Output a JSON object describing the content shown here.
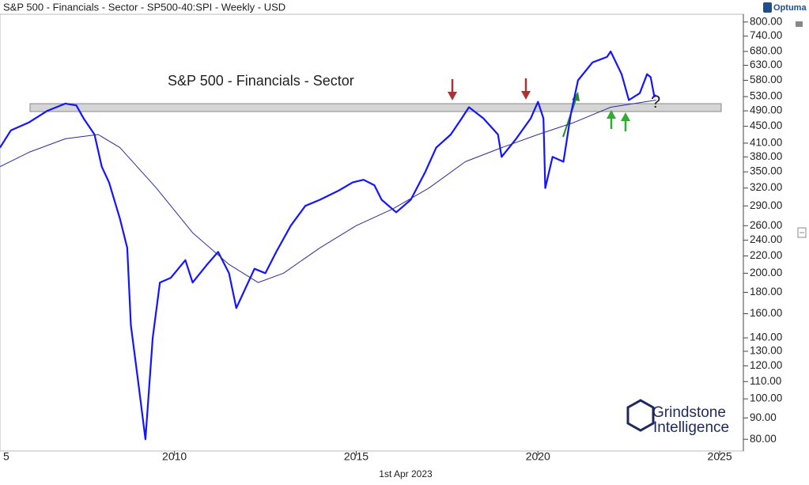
{
  "chart_data": {
    "type": "line",
    "title": "S&P 500 - Financials - Sector - SP500-40:SPI - Weekly - USD",
    "brand": "Optuma",
    "annotations": [
      "S&P 500 - Financials - Sector",
      "?"
    ],
    "date_label": "1st Apr 2023",
    "logo": [
      "Grindstone",
      "Intelligence"
    ],
    "log_scale": true,
    "xlim": [
      2005.2,
      2025.65
    ],
    "xticks": [
      {
        "value": 2005,
        "label": "5"
      },
      2010,
      2015,
      2020,
      2025
    ],
    "ylim": [
      75,
      835
    ],
    "yticks": [
      {
        "value": 800,
        "label": "800.00"
      },
      {
        "value": 740,
        "label": "740.00"
      },
      {
        "value": 680,
        "label": "680.00"
      },
      {
        "value": 630,
        "label": "630.00"
      },
      {
        "value": 580,
        "label": "580.00"
      },
      {
        "value": 530,
        "label": "530.00"
      },
      {
        "value": 490,
        "label": "490.00"
      },
      {
        "value": 450,
        "label": "450.00"
      },
      {
        "value": 410,
        "label": "410.00"
      },
      {
        "value": 380,
        "label": "380.00"
      },
      {
        "value": 350,
        "label": "350.00"
      },
      {
        "value": 320,
        "label": "320.00"
      },
      {
        "value": 290,
        "label": "290.00"
      },
      {
        "value": 260,
        "label": "260.00"
      },
      {
        "value": 240,
        "label": "240.00"
      },
      {
        "value": 220,
        "label": "220.00"
      },
      {
        "value": 200,
        "label": "200.00"
      },
      {
        "value": 180,
        "label": "180.00"
      },
      {
        "value": 160,
        "label": "160.00"
      },
      {
        "value": 140,
        "label": "140.00"
      },
      {
        "value": 130,
        "label": "130.00"
      },
      {
        "value": 120,
        "label": "120.00"
      },
      {
        "value": 110,
        "label": "110.00"
      },
      {
        "value": 100,
        "label": "100.00"
      },
      {
        "value": 90,
        "label": "90.00"
      },
      {
        "value": 80,
        "label": "80.00"
      }
    ],
    "series": [
      {
        "color": "#1414ff",
        "width": 2.2,
        "x": [
          2005.2,
          2005.5,
          2006,
          2006.5,
          2007,
          2007.3,
          2007.5,
          2007.8,
          2008,
          2008.2,
          2008.5,
          2008.7,
          2008.8,
          2009,
          2009.2,
          2009.4,
          2009.6,
          2009.9,
          2010.3,
          2010.5,
          2010.9,
          2011.2,
          2011.5,
          2011.7,
          2011.9,
          2012.2,
          2012.5,
          2012.8,
          2013.2,
          2013.6,
          2014,
          2014.5,
          2014.9,
          2015.2,
          2015.5,
          2015.7,
          2016.1,
          2016.5,
          2016.9,
          2017.2,
          2017.6,
          2017.9,
          2018.1,
          2018.5,
          2018.9,
          2019,
          2019.4,
          2019.8,
          2020,
          2020.15,
          2020.2,
          2020.4,
          2020.7,
          2020.9,
          2021.1,
          2021.5,
          2021.9,
          2022,
          2022.3,
          2022.5,
          2022.8,
          2023,
          2023.1,
          2023.2,
          2023.25
        ],
        "values": [
          400,
          440,
          460,
          490,
          510,
          505,
          470,
          430,
          360,
          330,
          270,
          230,
          150,
          110,
          80,
          140,
          190,
          195,
          215,
          190,
          210,
          225,
          200,
          165,
          180,
          205,
          200,
          225,
          260,
          290,
          300,
          315,
          330,
          335,
          325,
          300,
          280,
          300,
          350,
          400,
          430,
          470,
          500,
          470,
          430,
          380,
          420,
          470,
          515,
          470,
          320,
          380,
          370,
          480,
          580,
          640,
          660,
          680,
          600,
          520,
          540,
          600,
          590,
          530,
          535
        ]
      },
      {
        "color": "#2b2b9c",
        "width": 1,
        "x": [
          2005.2,
          2006,
          2007,
          2007.9,
          2008.5,
          2009.5,
          2010.5,
          2011.5,
          2012.3,
          2013,
          2014,
          2015,
          2016,
          2017,
          2018,
          2019,
          2020,
          2021,
          2022,
          2023.25
        ],
        "values": [
          360,
          390,
          420,
          430,
          400,
          320,
          250,
          210,
          190,
          200,
          230,
          260,
          285,
          320,
          370,
          400,
          430,
          460,
          500,
          520
        ]
      }
    ]
  }
}
